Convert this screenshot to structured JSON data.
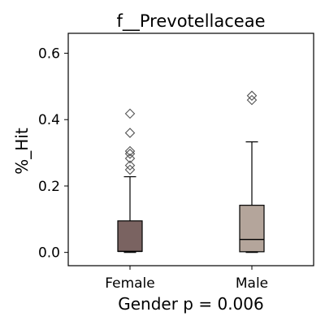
{
  "chart_data": {
    "type": "box",
    "title": "f__Prevotellaceae",
    "xlabel": "Gender p = 0.006",
    "ylabel": "%_Hit",
    "categories": [
      "Female",
      "Male"
    ],
    "ylim": [
      -0.04,
      0.66
    ],
    "yticks": [
      0.0,
      0.2,
      0.4,
      0.6
    ],
    "ytick_labels": [
      "0.0",
      "0.2",
      "0.4",
      "0.6"
    ],
    "grid": false,
    "boxes": [
      {
        "name": "Female",
        "color": "#7a6361",
        "whisker_low": 0.0,
        "q1": 0.003,
        "median": 0.003,
        "q3": 0.095,
        "whisker_high": 0.228,
        "outliers": [
          0.249,
          0.262,
          0.283,
          0.297,
          0.305,
          0.36,
          0.418
        ]
      },
      {
        "name": "Male",
        "color": "#b4a59b",
        "whisker_low": 0.0,
        "q1": 0.002,
        "median": 0.039,
        "q3": 0.142,
        "whisker_high": 0.333,
        "outliers": [
          0.459,
          0.472
        ]
      }
    ]
  }
}
